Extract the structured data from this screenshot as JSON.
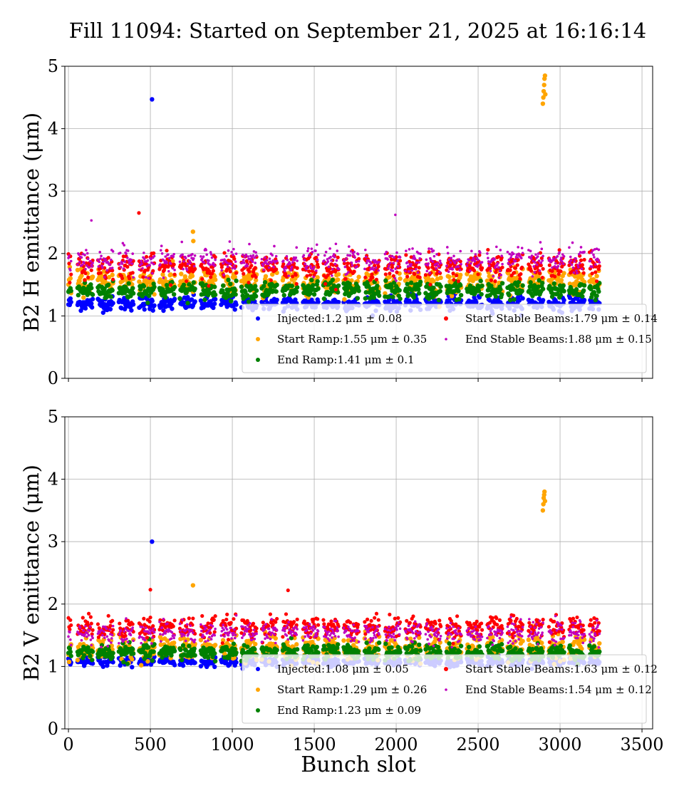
{
  "chart_data": [
    {
      "type": "scatter",
      "title": "Fill 11094: Started on September 21, 2025 at 16:16:14",
      "xlabel": "",
      "ylabel": "B2 H emittance (μm)",
      "xlim": [
        -22,
        3565
      ],
      "ylim": [
        0,
        5
      ],
      "xticks": [
        0,
        500,
        1000,
        1500,
        2000,
        2500,
        3000,
        3500
      ],
      "yticks": [
        0,
        1,
        2,
        3,
        4,
        5
      ],
      "grid": true,
      "legend_placement": "lower-right",
      "bunch_range": [
        0,
        3240
      ],
      "series": [
        {
          "name": "Injected",
          "legend": "Injected:1.2 μm ± 0.08",
          "mean": 1.2,
          "std": 0.08,
          "color": "#0000ff",
          "outliers": [
            [
              510,
              4.47
            ]
          ]
        },
        {
          "name": "Start Ramp",
          "legend": "Start Ramp:1.55 μm ± 0.35",
          "mean": 1.55,
          "std": 0.35,
          "color": "#ffa500",
          "outliers": [
            [
              2895,
              4.4
            ],
            [
              2898,
              4.5
            ],
            [
              2900,
              4.6
            ],
            [
              2903,
              4.7
            ],
            [
              2905,
              4.8
            ],
            [
              2908,
              4.85
            ],
            [
              2910,
              4.55
            ],
            [
              760,
              2.35
            ],
            [
              762,
              2.2
            ]
          ]
        },
        {
          "name": "End Ramp",
          "legend": "End Ramp:1.41 μm ± 0.1",
          "mean": 1.41,
          "std": 0.1,
          "color": "#008000",
          "outliers": []
        },
        {
          "name": "Start Stable Beams",
          "legend": "Start Stable Beams:1.79 μm ± 0.14",
          "mean": 1.79,
          "std": 0.14,
          "color": "#ff0000",
          "outliers": [
            [
              430,
              2.65
            ]
          ]
        },
        {
          "name": "End Stable Beams",
          "legend": "End Stable Beams:1.88 μm ± 0.15",
          "mean": 1.88,
          "std": 0.15,
          "color": "#bf00bf",
          "outliers": [
            [
              1995,
              2.62
            ],
            [
              140,
              2.53
            ]
          ]
        }
      ]
    },
    {
      "type": "scatter",
      "title": "",
      "xlabel": "Bunch slot",
      "ylabel": "B2 V emittance (μm)",
      "xlim": [
        -22,
        3565
      ],
      "ylim": [
        0,
        5
      ],
      "xticks": [
        0,
        500,
        1000,
        1500,
        2000,
        2500,
        3000,
        3500
      ],
      "yticks": [
        0,
        1,
        2,
        3,
        4,
        5
      ],
      "grid": true,
      "legend_placement": "lower-right",
      "bunch_range": [
        0,
        3240
      ],
      "series": [
        {
          "name": "Injected",
          "legend": "Injected:1.08 μm ± 0.05",
          "mean": 1.08,
          "std": 0.05,
          "color": "#0000ff",
          "outliers": [
            [
              510,
              3.0
            ]
          ]
        },
        {
          "name": "Start Ramp",
          "legend": "Start Ramp:1.29 μm ± 0.26",
          "mean": 1.29,
          "std": 0.26,
          "color": "#ffa500",
          "outliers": [
            [
              2895,
              3.5
            ],
            [
              2898,
              3.6
            ],
            [
              2900,
              3.7
            ],
            [
              2903,
              3.75
            ],
            [
              2905,
              3.8
            ],
            [
              2908,
              3.65
            ],
            [
              760,
              2.3
            ]
          ]
        },
        {
          "name": "End Ramp",
          "legend": "End Ramp:1.23 μm ± 0.09",
          "mean": 1.23,
          "std": 0.09,
          "color": "#008000",
          "outliers": []
        },
        {
          "name": "Start Stable Beams",
          "legend": "Start Stable Beams:1.63 μm ± 0.12",
          "mean": 1.63,
          "std": 0.12,
          "color": "#ff0000",
          "outliers": [
            [
              1340,
              2.22
            ],
            [
              500,
              2.23
            ]
          ]
        },
        {
          "name": "End Stable Beams",
          "legend": "End Stable Beams:1.54 μm ± 0.12",
          "mean": 1.54,
          "std": 0.12,
          "color": "#bf00bf",
          "outliers": []
        }
      ]
    }
  ]
}
